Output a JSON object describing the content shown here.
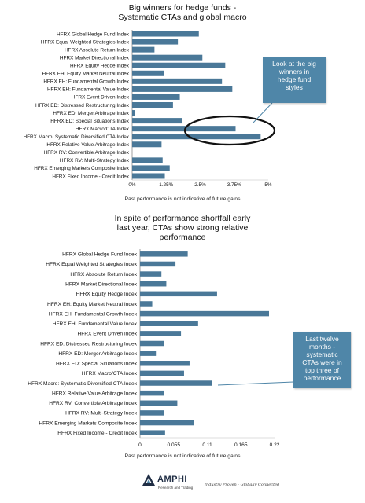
{
  "chart_data": [
    {
      "type": "bar",
      "orientation": "horizontal",
      "title": "Big winners for hedge funds -\nSystematic CTAs and global macro",
      "categories": [
        "HFRX Global Hedge Fund Index",
        "HFRX Equal Weighted Strategies Index",
        "HFRX Absolute Return Index",
        "HFRX Market Directional Index",
        "HFRX Equity Hedge Index",
        "HFRX EH: Equity Market Neutral Index",
        "HFRX EH: Fundamental Growth Index",
        "HFRX EH: Fundamental Value Index",
        "HFRX Event Driven Index",
        "HFRX ED: Distressed Restructuring Index",
        "HFRX ED: Merger Arbitrage Index",
        "HFRX ED: Special Situations Index",
        "HFRX Macro/CTA Index",
        "HFRX Macro: Systematic Diversified CTA Index",
        "HFRX Relative Value Arbitrage Index",
        "HFRX RV: Convertible Arbitrage Index",
        "HFRX RV: Multi-Strategy Index",
        "HFRX Emerging Markets Composite Index",
        "HFRX Fixed Income - Credit Index"
      ],
      "values": [
        2.45,
        1.68,
        0.82,
        2.58,
        3.42,
        1.18,
        3.3,
        3.68,
        1.75,
        1.5,
        0.1,
        1.85,
        3.8,
        4.72,
        1.08,
        0.0,
        1.12,
        1.38,
        1.2
      ],
      "xlim": [
        0,
        5
      ],
      "tick_labels": [
        "0%",
        "1.25%",
        "2.5%",
        "3.75%",
        "5%"
      ],
      "note": "Past performance is not indicative of future gains",
      "callout": "Look at the big\nwinners in\nhedge fund\nstyles",
      "bar_color": "#4a7898"
    },
    {
      "type": "bar",
      "orientation": "horizontal",
      "title": "In spite of performance shortfall early\nlast year,  CTAs show strong relative\nperformance",
      "categories": [
        "HFRX Global Hedge Fund Index",
        "HFRX Equal Weighted Strategies Index",
        "HFRX Absolute Return Index",
        "HFRX Market Directional Index",
        "HFRX Equity Hedge Index",
        "HFRX EH: Equity Market Neutral Index",
        "HFRX EH: Fundamental Growth Index",
        "HFRX EH: Fundamental Value Index",
        "HFRX Event Driven Index",
        "HFRX ED: Distressed Restructuring Index",
        "HFRX ED: Merger Arbitrage Index",
        "HFRX ED: Special Situations Index",
        "HFRX Macro/CTA Index",
        "HFRX Macro: Systematic Diversified CTA Index",
        "HFRX Relative Value Arbitrage Index",
        "HFRX RV: Convertible Arbitrage Index",
        "HFRX RV: Multi-Strategy Index",
        "HFRX Emerging Markets Composite Index",
        "HFRX Fixed Income - Credit Index"
      ],
      "values": [
        0.078,
        0.058,
        0.035,
        0.043,
        0.126,
        0.02,
        0.211,
        0.095,
        0.067,
        0.039,
        0.026,
        0.081,
        0.072,
        0.118,
        0.039,
        0.061,
        0.039,
        0.088,
        0.041
      ],
      "xlim": [
        0,
        0.22
      ],
      "tick_labels": [
        "0",
        "0.055",
        "0.11",
        "0.165",
        "0.22"
      ],
      "note": "Past performance is not indicative of future gains",
      "callout": "Last twelve\nmonths -\nsystematic\nCTAs were in\ntop three of\nperformance",
      "bar_color": "#4a7898"
    }
  ],
  "footer": {
    "brand": "AMPHI",
    "brand_sub": "Research and Trading",
    "tagline": "Industry Proven - Globally Connected"
  }
}
